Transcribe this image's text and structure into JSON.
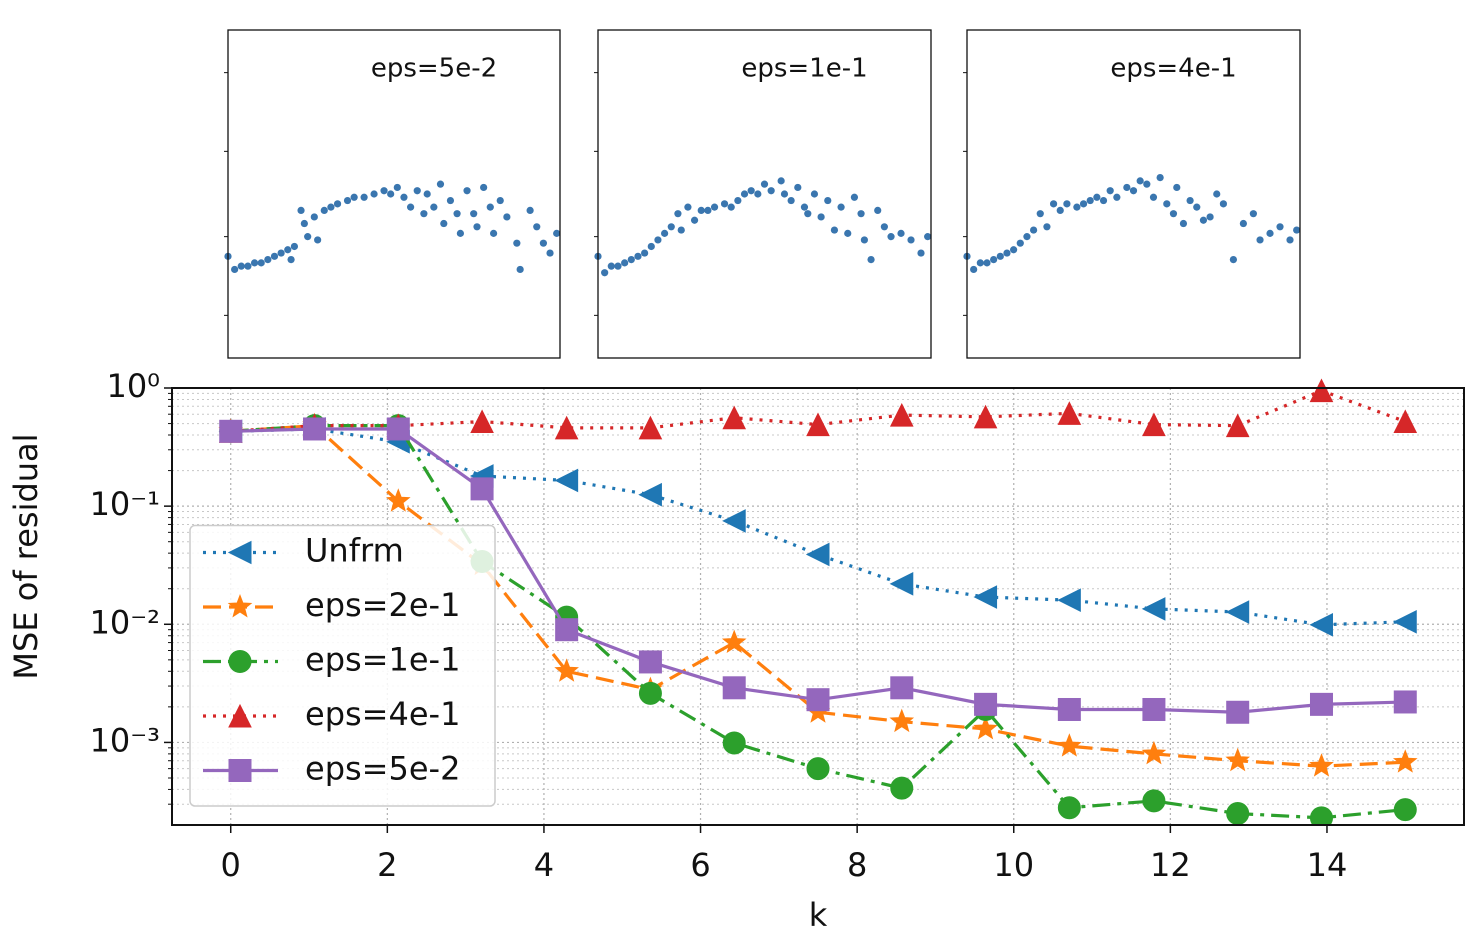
{
  "chart_data": [
    {
      "type": "scatter",
      "annotation": "eps=5e-2",
      "color": "#3a76af",
      "xlim": [
        0,
        100
      ],
      "ylim": [
        0,
        100
      ],
      "yticks": [
        13,
        37,
        63,
        87
      ],
      "x": [
        0,
        2,
        4,
        6,
        8,
        10,
        12,
        14,
        16,
        18,
        19,
        20,
        22,
        23,
        24,
        26,
        27,
        29,
        31,
        33,
        36,
        38,
        41,
        44,
        47,
        49,
        51,
        53,
        55,
        57,
        59,
        60,
        62,
        64,
        65,
        67,
        69,
        70,
        72,
        74,
        75,
        77,
        79,
        80,
        82,
        84,
        87,
        88,
        91,
        93,
        95,
        97,
        99
      ],
      "values": [
        31,
        27,
        28,
        28,
        29,
        29,
        30,
        31,
        32,
        33,
        30,
        34,
        45,
        41,
        37,
        43,
        36,
        45,
        46,
        47,
        48,
        49,
        49,
        50,
        51,
        50,
        52,
        49,
        46,
        51,
        44,
        50,
        46,
        53,
        41,
        48,
        44,
        38,
        51,
        44,
        40,
        52,
        46,
        38,
        48,
        43,
        35,
        27,
        45,
        40,
        35,
        32,
        38
      ]
    },
    {
      "type": "scatter",
      "annotation": "eps=1e-1",
      "color": "#3a76af",
      "xlim": [
        0,
        100
      ],
      "ylim": [
        0,
        100
      ],
      "yticks": [
        13,
        37,
        63,
        87
      ],
      "x": [
        0,
        2,
        4,
        6,
        8,
        10,
        12,
        14,
        16,
        18,
        20,
        22,
        24,
        25,
        27,
        29,
        31,
        33,
        35,
        38,
        40,
        42,
        44,
        46,
        48,
        50,
        52,
        55,
        56,
        58,
        60,
        62,
        63,
        65,
        67,
        69,
        71,
        73,
        75,
        77,
        79,
        80,
        82,
        84,
        86,
        88,
        91,
        94,
        97,
        99
      ],
      "values": [
        31,
        26,
        28,
        28,
        29,
        30,
        31,
        32,
        34,
        36,
        38,
        40,
        44,
        39,
        46,
        42,
        45,
        45,
        46,
        47,
        46,
        48,
        50,
        51,
        50,
        53,
        51,
        54,
        50,
        48,
        52,
        46,
        44,
        50,
        43,
        48,
        39,
        46,
        38,
        49,
        44,
        36,
        30,
        45,
        40,
        37,
        38,
        36,
        32,
        37
      ]
    },
    {
      "type": "scatter",
      "annotation": "eps=4e-1",
      "color": "#3a76af",
      "xlim": [
        0,
        100
      ],
      "ylim": [
        0,
        100
      ],
      "yticks": [
        13,
        37,
        63,
        87
      ],
      "x": [
        0,
        2,
        4,
        6,
        8,
        10,
        12,
        14,
        16,
        18,
        20,
        22,
        24,
        26,
        28,
        30,
        33,
        35,
        37,
        39,
        41,
        43,
        45,
        48,
        50,
        52,
        54,
        56,
        58,
        60,
        62,
        63,
        65,
        67,
        69,
        71,
        73,
        75,
        77,
        80,
        83,
        86,
        88,
        91,
        94,
        97,
        99
      ],
      "values": [
        31,
        27,
        29,
        29,
        30,
        31,
        32,
        33,
        35,
        37,
        39,
        44,
        40,
        47,
        45,
        47,
        46,
        47,
        48,
        49,
        48,
        51,
        49,
        52,
        51,
        54,
        53,
        49,
        55,
        47,
        44,
        52,
        41,
        48,
        46,
        42,
        43,
        50,
        47,
        30,
        41,
        44,
        36,
        38,
        40,
        36,
        39
      ]
    },
    {
      "type": "line",
      "xlabel": "k",
      "ylabel": "MSE of residual",
      "yscale": "log",
      "grid": true,
      "legend": "lower left",
      "xlim": [
        -0.75,
        15.75
      ],
      "xticks": [
        0,
        2,
        4,
        6,
        8,
        10,
        12,
        14
      ],
      "ylim": [
        0.0002,
        1
      ],
      "yticks": [
        {
          "value": 1,
          "label": "10⁰"
        },
        {
          "value": 0.1,
          "label": "10⁻¹"
        },
        {
          "value": 0.01,
          "label": "10⁻²"
        },
        {
          "value": 0.001,
          "label": "10⁻³"
        }
      ],
      "minor_yticks": [
        0.2,
        0.3,
        0.4,
        0.5,
        0.6,
        0.7,
        0.8,
        0.9,
        0.02,
        0.03,
        0.04,
        0.05,
        0.06,
        0.07,
        0.08,
        0.09,
        0.002,
        0.003,
        0.004,
        0.005,
        0.006,
        0.007,
        0.008,
        0.009,
        0.0003,
        0.0004,
        0.0005,
        0.0006,
        0.0007,
        0.0008,
        0.0009
      ],
      "x": [
        0,
        1.07,
        2.14,
        3.21,
        4.29,
        5.36,
        6.43,
        7.5,
        8.57,
        9.64,
        10.71,
        11.79,
        12.86,
        13.93,
        15
      ],
      "series": [
        {
          "name": "Unfrm",
          "color": "#1f77b4",
          "marker": "triangle-left",
          "linestyle": "dotted",
          "values": [
            0.43,
            0.45,
            0.35,
            0.18,
            0.165,
            0.125,
            0.075,
            0.039,
            0.022,
            0.017,
            0.016,
            0.0135,
            0.0127,
            0.0099,
            0.0105
          ]
        },
        {
          "name": "eps=2e-1",
          "color": "#ff7f0e",
          "marker": "star",
          "linestyle": "dashed",
          "values": [
            0.43,
            0.48,
            0.11,
            0.032,
            0.004,
            0.0028,
            0.007,
            0.0018,
            0.0015,
            0.0013,
            0.00093,
            0.0008,
            0.0007,
            0.00063,
            0.00068
          ]
        },
        {
          "name": "eps=1e-1",
          "color": "#2ca02c",
          "marker": "circle",
          "linestyle": "dashdot",
          "values": [
            0.43,
            0.48,
            0.48,
            0.034,
            0.0115,
            0.0026,
            0.00099,
            0.0006,
            0.00041,
            0.0019,
            0.00028,
            0.00032,
            0.00025,
            0.00023,
            0.00027
          ]
        },
        {
          "name": "eps=4e-1",
          "color": "#d62728",
          "marker": "triangle-up",
          "linestyle": "dotted",
          "values": [
            0.43,
            0.48,
            0.48,
            0.52,
            0.46,
            0.46,
            0.56,
            0.49,
            0.59,
            0.57,
            0.61,
            0.49,
            0.48,
            0.95,
            0.52
          ]
        },
        {
          "name": "eps=5e-2",
          "color": "#9467bd",
          "marker": "square",
          "linestyle": "solid",
          "values": [
            0.43,
            0.45,
            0.45,
            0.14,
            0.009,
            0.0048,
            0.0029,
            0.0023,
            0.0029,
            0.0021,
            0.0019,
            0.0019,
            0.0018,
            0.0021,
            0.0022
          ]
        }
      ]
    }
  ]
}
